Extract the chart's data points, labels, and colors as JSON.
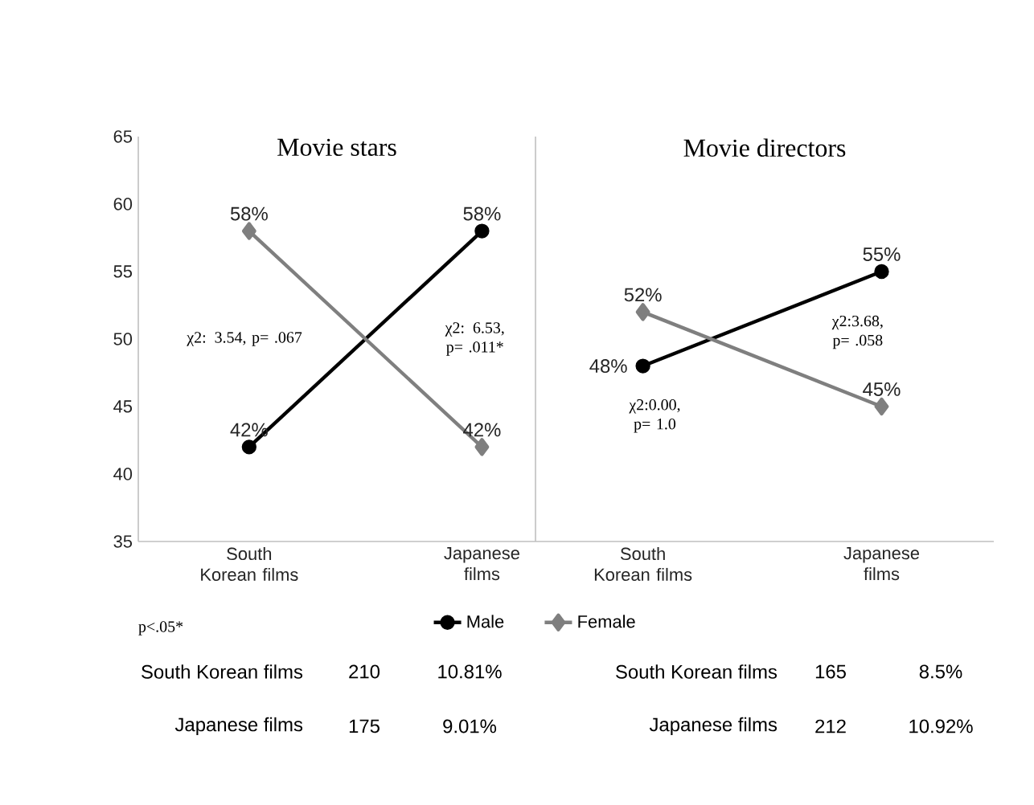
{
  "chart_data": [
    {
      "type": "line",
      "title": "Movie stars",
      "categories": [
        "South Korean films",
        "Japanese films"
      ],
      "ylim": [
        35,
        65
      ],
      "yticks": [
        35,
        40,
        45,
        50,
        55,
        60,
        65
      ],
      "legend": "bottom",
      "series": [
        {
          "name": "Male",
          "color": "#000000",
          "marker": "circle",
          "values": [
            42,
            58
          ],
          "value_labels": [
            "42%",
            "58%"
          ]
        },
        {
          "name": "Female",
          "color": "#7f7f7f",
          "marker": "diamond",
          "values": [
            58,
            42
          ],
          "value_labels": [
            "58%",
            "42%"
          ]
        }
      ],
      "annotations": [
        "χ2: 3.54, p= .067",
        "χ2: 6.53, p= .011*",
        "p<.05*",
        "South Korean films",
        "210",
        "10.81%",
        "Japanese films",
        "175",
        "9.01%"
      ]
    },
    {
      "type": "line",
      "title": "Movie directors",
      "categories": [
        "South Korean films",
        "Japanese films"
      ],
      "ylim": [
        35,
        65
      ],
      "tick_labels": "x",
      "series": [
        {
          "color": "#000000",
          "marker": "circle",
          "values": [
            48,
            55
          ],
          "value_labels": [
            "48%",
            "55%"
          ]
        },
        {
          "color": "#7f7f7f",
          "marker": "diamond",
          "values": [
            52,
            45
          ],
          "value_labels": [
            "52%",
            "45%"
          ]
        }
      ],
      "annotations": [
        "χ2:0.00, p= 1.0",
        "χ2:3.68, p= .058",
        "South Korean films",
        "165",
        "8.5%",
        "Japanese films",
        "212",
        "10.92%"
      ]
    }
  ]
}
